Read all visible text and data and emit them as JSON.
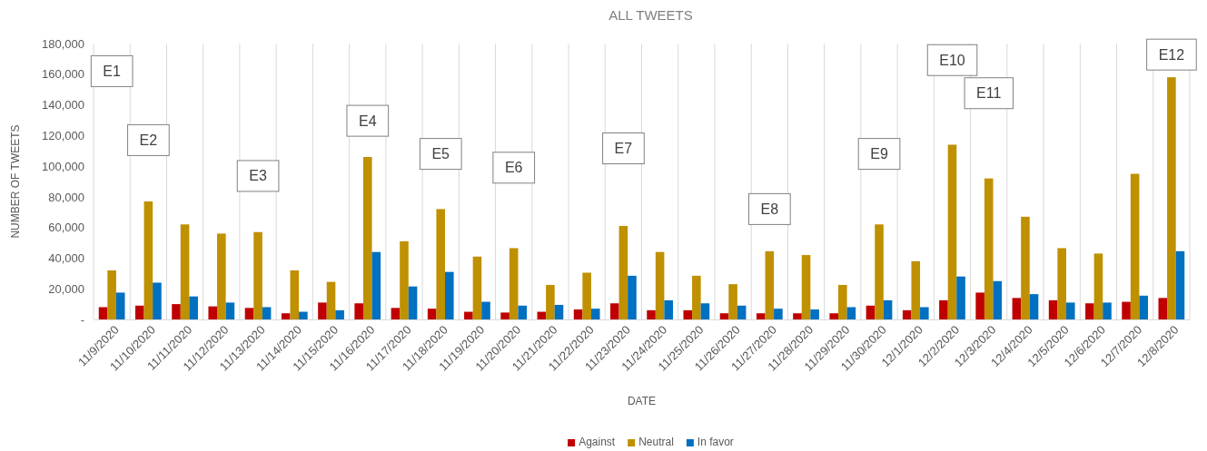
{
  "chart_data": {
    "type": "bar",
    "title": "ALL TWEETS",
    "xlabel": "DATE",
    "ylabel": "NUMBER OF TWEETS",
    "categories": [
      "11/9/2020",
      "11/10/2020",
      "11/11/2020",
      "11/12/2020",
      "11/13/2020",
      "11/14/2020",
      "11/15/2020",
      "11/16/2020",
      "11/17/2020",
      "11/18/2020",
      "11/19/2020",
      "11/20/2020",
      "11/21/2020",
      "11/22/2020",
      "11/23/2020",
      "11/24/2020",
      "11/25/2020",
      "11/26/2020",
      "11/27/2020",
      "11/28/2020",
      "11/29/2020",
      "11/30/2020",
      "12/1/2020",
      "12/2/2020",
      "12/3/2020",
      "12/4/2020",
      "12/5/2020",
      "12/6/2020",
      "12/7/2020",
      "12/8/2020"
    ],
    "series": [
      {
        "name": "Against",
        "color": "#c00000",
        "values": [
          8000,
          9000,
          10000,
          8500,
          7500,
          4000,
          11000,
          10500,
          7500,
          7000,
          5000,
          4500,
          5000,
          6500,
          10500,
          6000,
          6000,
          4000,
          4000,
          4000,
          4000,
          9000,
          6000,
          12500,
          17500,
          14000,
          12500,
          10500,
          11500,
          14000
        ]
      },
      {
        "name": "Neutral",
        "color": "#bf9000",
        "values": [
          32000,
          77000,
          62000,
          56000,
          57000,
          32000,
          24500,
          106000,
          51000,
          72000,
          41000,
          46500,
          22500,
          30500,
          61000,
          44000,
          28500,
          23000,
          44500,
          42000,
          22500,
          62000,
          38000,
          114000,
          92000,
          67000,
          46500,
          43000,
          95000,
          158000
        ]
      },
      {
        "name": "In favor",
        "color": "#0070c0",
        "values": [
          17500,
          24000,
          15000,
          11000,
          8000,
          5000,
          6000,
          44000,
          21500,
          31000,
          11500,
          9000,
          9500,
          7000,
          28500,
          12500,
          10500,
          9000,
          7000,
          6500,
          8000,
          12500,
          8000,
          28000,
          25000,
          16500,
          11000,
          11000,
          15500,
          44500
        ]
      }
    ],
    "ylim": [
      0,
      180000
    ],
    "yticks": [
      {
        "value": 0,
        "label": "-"
      },
      {
        "value": 20000,
        "label": "20,000"
      },
      {
        "value": 40000,
        "label": "40,000"
      },
      {
        "value": 60000,
        "label": "60,000"
      },
      {
        "value": 80000,
        "label": "80,000"
      },
      {
        "value": 100000,
        "label": "100,000"
      },
      {
        "value": 120000,
        "label": "120,000"
      },
      {
        "value": 140000,
        "label": "140,000"
      },
      {
        "value": 160000,
        "label": "160,000"
      },
      {
        "value": 180000,
        "label": "180,000"
      }
    ],
    "grid": "x",
    "legend": "bottom",
    "annotations": [
      "E1",
      "E2",
      "E3",
      "E4",
      "E5",
      "E6",
      "E7",
      "E8",
      "E9",
      "E10",
      "E11",
      "E12"
    ]
  }
}
